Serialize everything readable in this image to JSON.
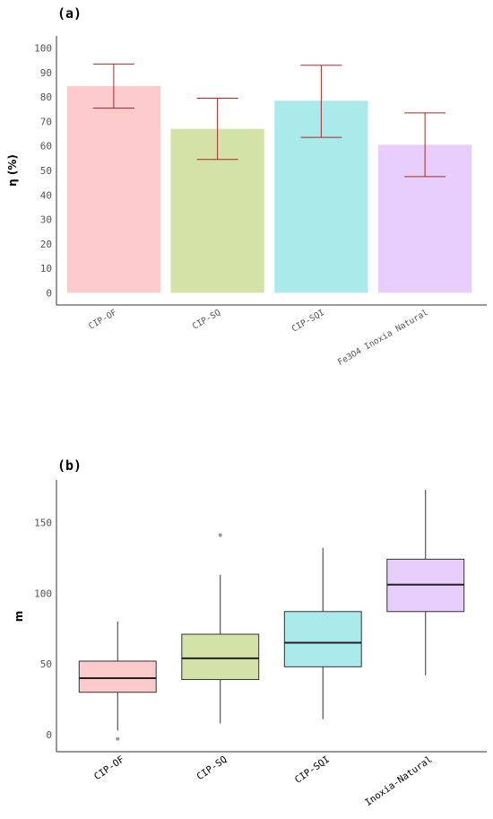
{
  "chart_data": [
    {
      "panel": "(a)",
      "type": "bar",
      "ylabel": "η (%)",
      "ylim": [
        -5,
        105
      ],
      "yticks": [
        0,
        10,
        20,
        30,
        40,
        50,
        60,
        70,
        80,
        90,
        100
      ],
      "grid": false,
      "categories": [
        "CIP-OF",
        "CIP-SQ",
        "CIP-SQI",
        "Fe3O4 Inoxia Natural"
      ],
      "values": [
        84.5,
        67,
        78.5,
        60.5
      ],
      "error_low": [
        75.5,
        54.5,
        63.5,
        47.5
      ],
      "error_high": [
        93.5,
        79.5,
        93,
        73.5
      ],
      "colors": [
        "#fdcbcb",
        "#d3e3a8",
        "#aaeaea",
        "#e8cefc"
      ],
      "error_color": "#a52a2a"
    },
    {
      "panel": "(b)",
      "type": "box",
      "ylabel": "m",
      "ylim": [
        -12,
        180
      ],
      "yticks": [
        0,
        50,
        100,
        150
      ],
      "grid": false,
      "categories": [
        "CIP-OF",
        "CIP-SQ",
        "CIP-SQI",
        "Inoxia-Natural"
      ],
      "boxes": [
        {
          "whisker_low": 3,
          "q1": 30,
          "median": 40,
          "q3": 52,
          "whisker_high": 80,
          "outliers": [
            -3
          ]
        },
        {
          "whisker_low": 8,
          "q1": 39,
          "median": 54,
          "q3": 71,
          "whisker_high": 113,
          "outliers": [
            141
          ]
        },
        {
          "whisker_low": 11,
          "q1": 48,
          "median": 65,
          "q3": 87,
          "whisker_high": 132,
          "outliers": []
        },
        {
          "whisker_low": 42,
          "q1": 87,
          "median": 106,
          "q3": 124,
          "whisker_high": 173,
          "outliers": []
        }
      ],
      "colors": [
        "#fdcbcb",
        "#d3e3a8",
        "#aaeaea",
        "#e8cefc"
      ]
    }
  ]
}
